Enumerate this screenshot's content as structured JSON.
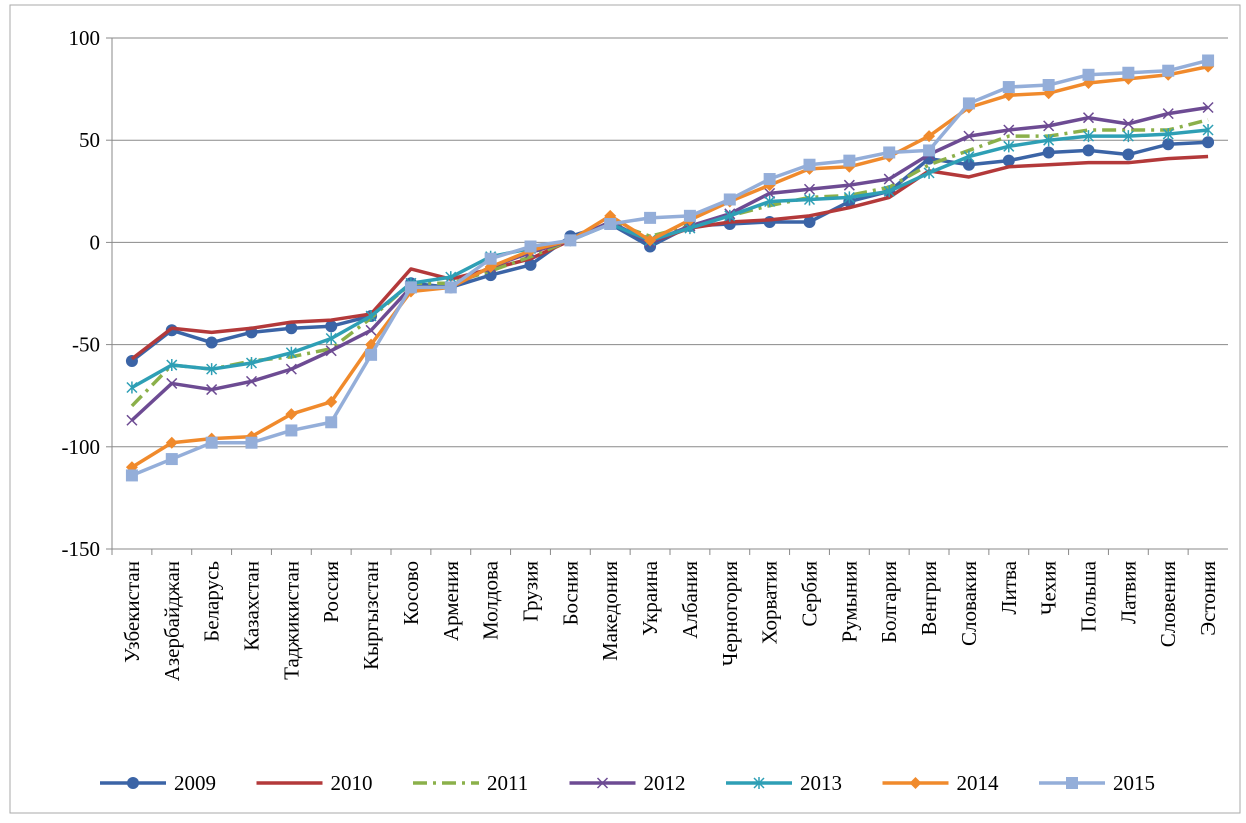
{
  "chart_data": {
    "type": "line",
    "categories": [
      "Узбекистан",
      "Азербайджан",
      "Беларусь",
      "Казахстан",
      "Таджикистан",
      "Россия",
      "Кыргызстан",
      "Косово",
      "Армения",
      "Молдова",
      "Грузия",
      "Босния",
      "Македония",
      "Украина",
      "Албания",
      "Черногория",
      "Хорватия",
      "Сербия",
      "Румыния",
      "Болгария",
      "Венгрия",
      "Словакия",
      "Литва",
      "Чехия",
      "Польша",
      "Латвия",
      "Словения",
      "Эстония"
    ],
    "series": [
      {
        "name": "2009",
        "color": "#3b64a6",
        "marker": "circle",
        "dash": "solid",
        "values": [
          -58,
          -43,
          -49,
          -44,
          -42,
          -41,
          -36,
          -20,
          -22,
          -16,
          -11,
          3,
          9,
          -2,
          8,
          9,
          10,
          10,
          20,
          25,
          41,
          38,
          40,
          44,
          45,
          43,
          48,
          49
        ]
      },
      {
        "name": "2010",
        "color": "#b3393a",
        "marker": "none",
        "dash": "solid",
        "values": [
          -57,
          -42,
          -44,
          -42,
          -39,
          -38,
          -35,
          -13,
          -18,
          -13,
          -8,
          1,
          10,
          0,
          7,
          10,
          11,
          13,
          17,
          22,
          35,
          32,
          37,
          38,
          39,
          39,
          41,
          42
        ]
      },
      {
        "name": "2011",
        "color": "#8bb04a",
        "marker": "none",
        "dash": "dashdot",
        "values": [
          -80,
          -60,
          -62,
          -58,
          -56,
          -52,
          -37,
          -20,
          -20,
          -14,
          -7,
          1,
          10,
          3,
          8,
          13,
          18,
          22,
          23,
          27,
          38,
          45,
          52,
          52,
          55,
          55,
          55,
          60
        ]
      },
      {
        "name": "2012",
        "color": "#6d4b93",
        "marker": "x",
        "dash": "solid",
        "values": [
          -87,
          -69,
          -72,
          -68,
          -62,
          -53,
          -43,
          -22,
          -22,
          -12,
          -5,
          1,
          10,
          0,
          8,
          14,
          24,
          26,
          28,
          31,
          43,
          52,
          55,
          57,
          61,
          58,
          63,
          66
        ]
      },
      {
        "name": "2013",
        "color": "#2e9fb5",
        "marker": "star",
        "dash": "solid",
        "values": [
          -71,
          -60,
          -62,
          -59,
          -54,
          -47,
          -36,
          -20,
          -17,
          -7,
          -3,
          1,
          9,
          1,
          7,
          13,
          20,
          21,
          22,
          25,
          34,
          42,
          47,
          50,
          52,
          52,
          53,
          55
        ]
      },
      {
        "name": "2014",
        "color": "#f08a2c",
        "marker": "diamond",
        "dash": "solid",
        "values": [
          -110,
          -98,
          -96,
          -95,
          -84,
          -78,
          -50,
          -24,
          -22,
          -12,
          -4,
          1,
          13,
          1,
          11,
          20,
          28,
          36,
          37,
          42,
          52,
          66,
          72,
          73,
          78,
          80,
          82,
          86
        ]
      },
      {
        "name": "2015",
        "color": "#94aed9",
        "marker": "square",
        "dash": "solid",
        "values": [
          -114,
          -106,
          -98,
          -98,
          -92,
          -88,
          -55,
          -22,
          -22,
          -8,
          -2,
          1,
          9,
          12,
          13,
          21,
          31,
          38,
          40,
          44,
          45,
          68,
          76,
          77,
          82,
          83,
          84,
          89
        ]
      }
    ],
    "ylim": [
      -150,
      100
    ],
    "yticks": [
      -150,
      -100,
      -50,
      0,
      50,
      100
    ],
    "grid": true,
    "legend": "bottom"
  }
}
